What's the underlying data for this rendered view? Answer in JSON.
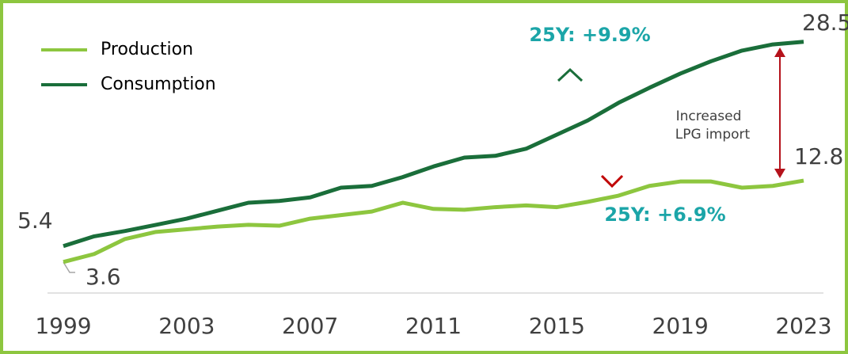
{
  "chart_data": {
    "type": "line",
    "x": [
      1999,
      2000,
      2001,
      2002,
      2003,
      2004,
      2005,
      2006,
      2007,
      2008,
      2009,
      2010,
      2011,
      2012,
      2013,
      2014,
      2015,
      2016,
      2017,
      2018,
      2019,
      2020,
      2021,
      2022,
      2023
    ],
    "series": [
      {
        "name": "Production",
        "color": "#8dc63f",
        "values": [
          3.6,
          4.5,
          6.2,
          7.0,
          7.3,
          7.6,
          7.8,
          7.7,
          8.5,
          8.9,
          9.3,
          10.3,
          9.6,
          9.5,
          9.8,
          10.0,
          9.8,
          10.4,
          11.1,
          12.2,
          12.7,
          12.7,
          12.0,
          12.2,
          12.8
        ]
      },
      {
        "name": "Consumption",
        "color": "#1a6e3a",
        "values": [
          5.4,
          6.5,
          7.1,
          7.8,
          8.5,
          9.4,
          10.3,
          10.5,
          10.9,
          12.0,
          12.2,
          13.2,
          14.4,
          15.4,
          15.6,
          16.4,
          18.0,
          19.6,
          21.6,
          23.3,
          24.9,
          26.3,
          27.5,
          28.2,
          28.5
        ]
      }
    ],
    "xlim": [
      1999,
      2023
    ],
    "xticks": [
      1999,
      2003,
      2007,
      2011,
      2015,
      2019,
      2023
    ],
    "ylim": [
      0,
      30
    ],
    "legend": "top-left",
    "annotations": {
      "consumption_growth": "25Y: +9.9%",
      "production_growth": "25Y: +6.9%",
      "gap_note": [
        "Increased",
        "LPG import"
      ]
    }
  }
}
